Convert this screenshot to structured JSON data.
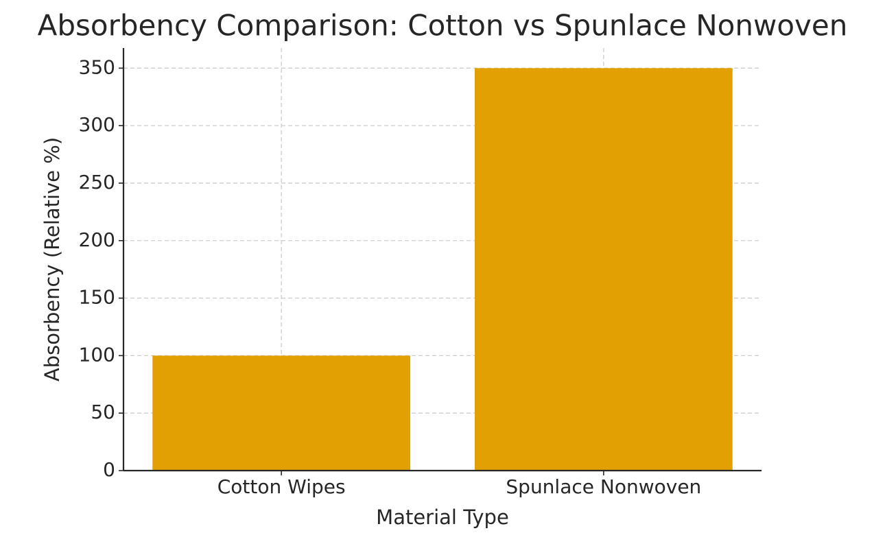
{
  "chart_data": {
    "type": "bar",
    "title": "Absorbency Comparison: Cotton vs Spunlace Nonwoven",
    "x_label": "Material Type",
    "y_label": "Absorbency (Relative %)",
    "categories": [
      "Cotton Wipes",
      "Spunlace Nonwoven"
    ],
    "values": [
      100,
      350
    ],
    "color": "#e3a003",
    "ylim": [
      0,
      367.5
    ],
    "yticks": [
      0,
      50,
      100,
      150,
      200,
      250,
      300,
      350
    ],
    "grid": true
  }
}
